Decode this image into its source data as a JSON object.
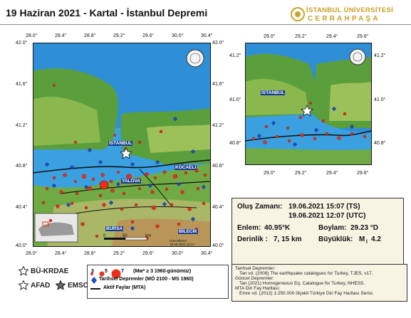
{
  "title": "19 Haziran 2021 - Kartal - İstanbul Depremi",
  "university": {
    "name": "İSTANBUL ÜNİVERSİTESİ",
    "sub": "CERRAHPAŞA"
  },
  "main_map": {
    "lon_ticks": [
      "28.0°",
      "28.4°",
      "28.8°",
      "29.2°",
      "29.6°",
      "30.0°",
      "30.4°"
    ],
    "lat_ticks": [
      "42.0°",
      "41.6°",
      "41.2°",
      "40.8°",
      "40.4°",
      "40.0°"
    ],
    "places": {
      "istanbul": "İSTANBUL",
      "kocaeli": "KOCAELİ",
      "yalova": "YALOVA",
      "bursa": "BURSA",
      "bilecik": "BİLECİK"
    },
    "scale_zero": "0",
    "scale_fifty": "50",
    "scale_unit": "km",
    "date_label": "Güncelleme",
    "date_value": "19.06.2021 22:17"
  },
  "inset_map": {
    "lon_ticks": [
      "29.0°",
      "29.2°",
      "29.4°",
      "29.6°"
    ],
    "lat_ticks": [
      "41.2°",
      "41.0°",
      "40.8°"
    ],
    "places": {
      "istanbul": "İSTANBUL"
    }
  },
  "info": {
    "time_label": "Oluş Zamanı:",
    "time_ts": "19.06.2021 15:07 (TS)",
    "time_utc": "19.06.2021 12:07 (UTC)",
    "lat_label": "Enlem:",
    "lat_value": "40.95°K",
    "lon_label": "Boylam:",
    "lon_value": "29.23 °D",
    "depth_label": "Derinlik :",
    "depth_value": "7, 15 km",
    "mag_label": "Büyüklük:",
    "mag_value": "M",
    "mag_sub": "l",
    "mag_num": "4.2"
  },
  "legend": {
    "size3": "3",
    "size5": "5",
    "size7": "7",
    "range_text": "(Mw* ≥ 3  1960-günümüz)",
    "historical": "Tarihsel Depremler (MÖ 2100 - MS 1960)",
    "faults": "Aktif Faylar (MTA)"
  },
  "agencies": {
    "bu": "BÜ-KRDAE",
    "afad": "AFAD",
    "emsc": "EMSC"
  },
  "references": {
    "h1": "Tarihsel Depremler:",
    "r1": "Tan vd. (2008) The earthquake catalogues for Turkey, TJES, v17.",
    "h2": "Güncel Depremler:",
    "r2": "Tan (2021) Homogeneous Eq. Catalogue for Turkey, NHESS.",
    "h3": "MTA Diri Fay Haritası:",
    "r3": "Emre vd. (2012) 1:250.000 ölçekli Türkiye Diri Fay Haritası Serisi."
  },
  "colors": {
    "quake": "#e8301c",
    "historical": "#1f4fbf",
    "sea": "#3aa0e0",
    "fault": "#111111",
    "gold": "#c9a227"
  }
}
